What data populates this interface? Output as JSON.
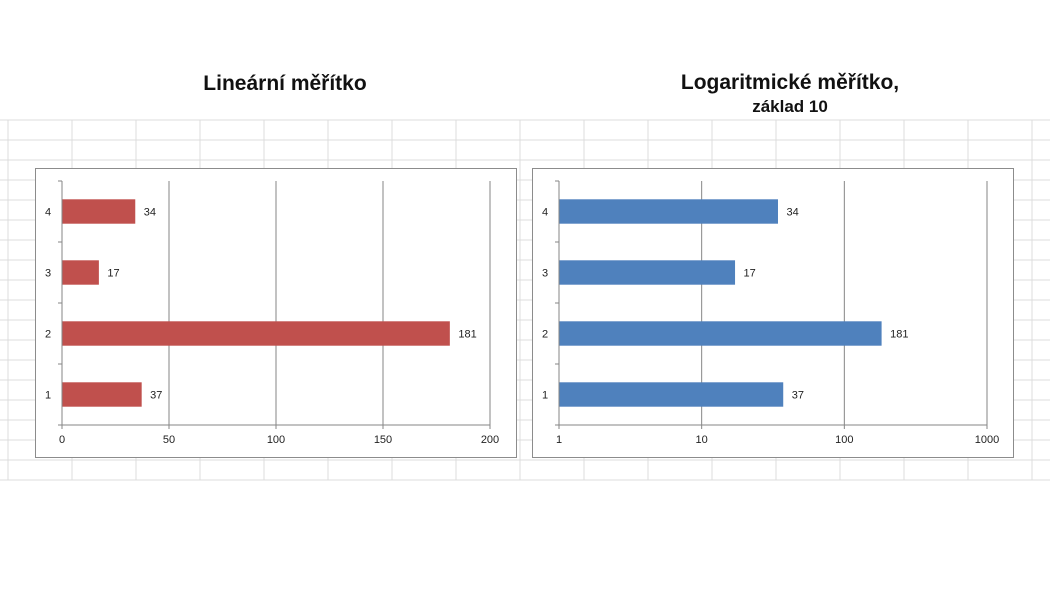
{
  "chart_data": [
    {
      "type": "bar",
      "orientation": "horizontal",
      "title": "Lineární měřítko",
      "subtitle": "",
      "categories": [
        "1",
        "2",
        "3",
        "4"
      ],
      "values": [
        37,
        181,
        17,
        34
      ],
      "data_labels": [
        "37",
        "181",
        "17",
        "34"
      ],
      "xscale": "linear",
      "xlim": [
        0,
        200
      ],
      "xticks": [
        0,
        50,
        100,
        150,
        200
      ],
      "xtick_labels": [
        "0",
        "50",
        "100",
        "150",
        "200"
      ],
      "bar_color": "#c0504d",
      "grid": "vertical"
    },
    {
      "type": "bar",
      "orientation": "horizontal",
      "title": "Logaritmické měřítko,",
      "subtitle": "základ 10",
      "categories": [
        "1",
        "2",
        "3",
        "4"
      ],
      "values": [
        37,
        181,
        17,
        34
      ],
      "data_labels": [
        "37",
        "181",
        "17",
        "34"
      ],
      "xscale": "log",
      "log_base": 10,
      "xlim": [
        1,
        1000
      ],
      "xticks": [
        1,
        10,
        100,
        1000
      ],
      "xtick_labels": [
        "1",
        "10",
        "100",
        "1000"
      ],
      "bar_color": "#4f81bd",
      "grid": "vertical"
    }
  ]
}
